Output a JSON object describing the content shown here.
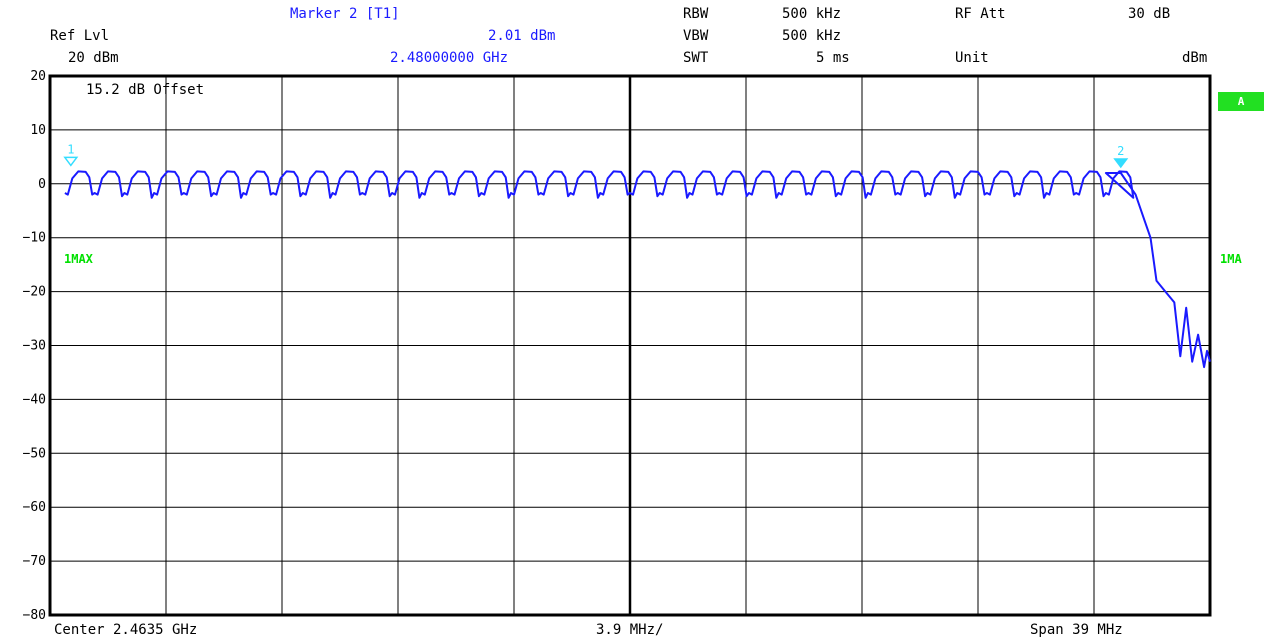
{
  "header": {
    "marker_title": "Marker 2 [T1]",
    "ref_lvl_label": "Ref Lvl",
    "ref_lvl_value": "20 dBm",
    "marker_level": "2.01 dBm",
    "marker_freq": "2.48000000 GHz",
    "rbw_label": "RBW",
    "rbw_value": "500 kHz",
    "vbw_label": "VBW",
    "vbw_value": "500 kHz",
    "swt_label": "SWT",
    "swt_value": "5 ms",
    "rfatt_label": "RF Att",
    "rfatt_value": "30 dB",
    "unit_label": "Unit",
    "unit_value": "dBm"
  },
  "plot": {
    "offset_note": "15.2 dB Offset",
    "trace_left": "1MAX",
    "trace_right": "1MA",
    "badge": "A",
    "marker1_label": "1",
    "marker2_label": "2"
  },
  "footer": {
    "center": "Center 2.4635 GHz",
    "per_div": "3.9 MHz/",
    "span": "Span 39 MHz"
  },
  "colors": {
    "trace": "#1a1aff",
    "marker": "#33ddff",
    "label": "#00e000"
  },
  "chart_data": {
    "type": "line",
    "title": "",
    "xlabel": "",
    "ylabel": "dBm",
    "xlim": [
      2.444,
      2.483
    ],
    "ylim": [
      -80,
      20
    ],
    "yticks": [
      "20",
      "10",
      "0",
      "-10",
      "-20",
      "-30",
      "-40",
      "-50",
      "-60",
      "-70",
      "-80"
    ],
    "grid": true,
    "channel_start_ghz": 2.4445,
    "channel_spacing_mhz": 1.0,
    "channel_count": 36,
    "channel_peak_dbm": 2.3,
    "channel_dip_dbm": -2.0,
    "series": [
      {
        "x": [
          2.4795,
          2.48,
          2.4805,
          2.481,
          2.4812,
          2.4815,
          2.4818,
          2.482,
          2.4822,
          2.4824,
          2.4826,
          2.4828,
          2.4829,
          2.483
        ],
        "y": [
          2.0,
          2.01,
          -2,
          -10,
          -18,
          -20,
          -22,
          -32,
          -23,
          -33,
          -28,
          -34,
          -31,
          -33
        ]
      }
    ],
    "markers": [
      {
        "label": "1",
        "x": 2.4447,
        "y": 2.3
      },
      {
        "label": "2",
        "x": 2.48,
        "y": 2.01
      }
    ]
  }
}
